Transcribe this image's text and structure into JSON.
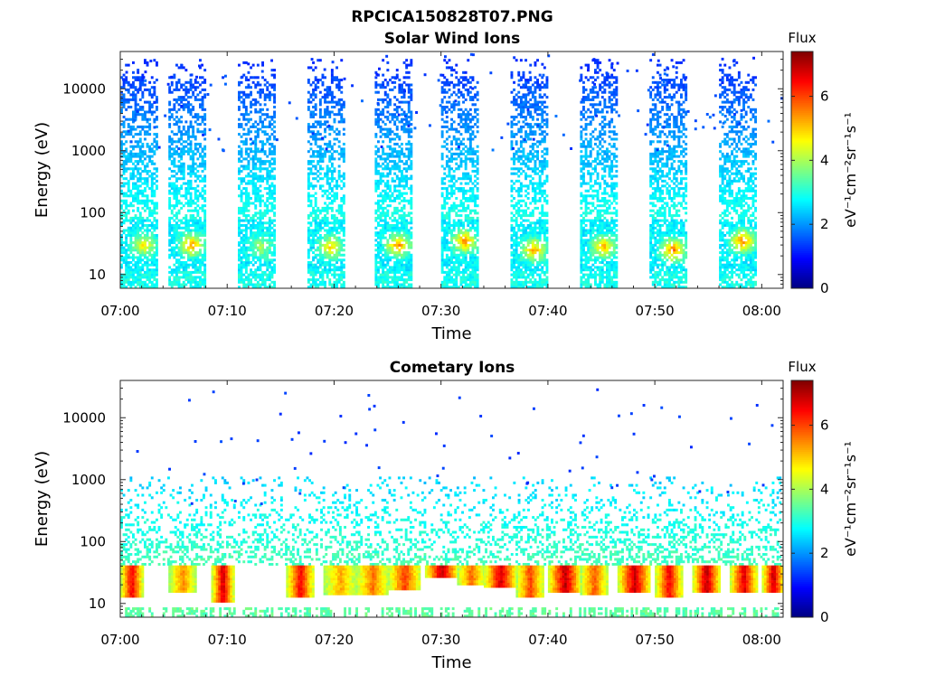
{
  "figure": {
    "title": "RPCICA150828T07.PNG"
  },
  "chart_data": [
    {
      "type": "heatmap",
      "title": "Solar Wind Ions",
      "xlabel": "Time",
      "ylabel": "Energy (eV)",
      "yscale": "log",
      "xlim": [
        "07:00",
        "08:02"
      ],
      "ylim": [
        6,
        40000
      ],
      "x_ticks": [
        "07:00",
        "07:10",
        "07:20",
        "07:30",
        "07:40",
        "07:50",
        "08:00"
      ],
      "y_ticks": [
        "10",
        "100",
        "1000",
        "10000"
      ],
      "colorbar": {
        "label": "Flux",
        "units": "eV⁻¹cm⁻²sr⁻¹s⁻¹",
        "range": [
          0,
          7.4
        ],
        "ticks": [
          "0",
          "2",
          "4",
          "6"
        ],
        "colormap": "jet"
      },
      "sweep_start_min": [
        0.0,
        4.5,
        11.0,
        17.5,
        23.8,
        30.0,
        36.5,
        43.0,
        49.5,
        56.0
      ],
      "sweep_duration_min": 3.5,
      "bursts": [
        {
          "start": 0.0,
          "peak_energy_eV": 30,
          "peak_flux": 4.6
        },
        {
          "start": 4.5,
          "peak_energy_eV": 30,
          "peak_flux": 5.3
        },
        {
          "start": 11.0,
          "peak_energy_eV": 28,
          "peak_flux": 3.8
        },
        {
          "start": 17.5,
          "peak_energy_eV": 28,
          "peak_flux": 4.8
        },
        {
          "start": 23.8,
          "peak_energy_eV": 30,
          "peak_flux": 5.4
        },
        {
          "start": 30.0,
          "peak_energy_eV": 35,
          "peak_flux": 5.5
        },
        {
          "start": 36.5,
          "peak_energy_eV": 25,
          "peak_flux": 5.2
        },
        {
          "start": 43.0,
          "peak_energy_eV": 28,
          "peak_flux": 5.1
        },
        {
          "start": 49.5,
          "peak_energy_eV": 25,
          "peak_flux": 5.6
        },
        {
          "start": 56.0,
          "peak_energy_eV": 35,
          "peak_flux": 5.6
        }
      ],
      "background_flux": [
        1.2,
        2.8
      ],
      "grid": false
    },
    {
      "type": "heatmap",
      "title": "Cometary Ions",
      "xlabel": "Time",
      "ylabel": "Energy (eV)",
      "yscale": "log",
      "xlim": [
        "07:00",
        "08:02"
      ],
      "ylim": [
        6,
        40000
      ],
      "x_ticks": [
        "07:00",
        "07:10",
        "07:20",
        "07:30",
        "07:40",
        "07:50",
        "08:00"
      ],
      "y_ticks": [
        "10",
        "100",
        "1000",
        "10000"
      ],
      "colorbar": {
        "label": "Flux",
        "units": "eV⁻¹cm⁻²sr⁻¹s⁻¹",
        "range": [
          0,
          7.4
        ],
        "ticks": [
          "0",
          "2",
          "4",
          "6"
        ],
        "colormap": "jet"
      },
      "bursts": [
        {
          "start": 0.0,
          "end": 2.0,
          "energy_eV": [
            12,
            40
          ],
          "peak_flux": 6.4
        },
        {
          "start": 4.5,
          "end": 7.0,
          "energy_eV": [
            15,
            40
          ],
          "peak_flux": 5.2
        },
        {
          "start": 8.5,
          "end": 10.5,
          "energy_eV": [
            10,
            40
          ],
          "peak_flux": 6.6
        },
        {
          "start": 15.5,
          "end": 18.0,
          "energy_eV": [
            12,
            40
          ],
          "peak_flux": 6.3
        },
        {
          "start": 19.0,
          "end": 22.0,
          "energy_eV": [
            14,
            40
          ],
          "peak_flux": 5.0
        },
        {
          "start": 22.0,
          "end": 25.0,
          "energy_eV": [
            14,
            40
          ],
          "peak_flux": 5.4
        },
        {
          "start": 25.0,
          "end": 28.0,
          "energy_eV": [
            16,
            40
          ],
          "peak_flux": 5.8
        },
        {
          "start": 28.5,
          "end": 31.5,
          "energy_eV": [
            25,
            40
          ],
          "peak_flux": 6.8
        },
        {
          "start": 31.5,
          "end": 34.0,
          "energy_eV": [
            20,
            40
          ],
          "peak_flux": 5.5
        },
        {
          "start": 34.0,
          "end": 37.0,
          "energy_eV": [
            18,
            40
          ],
          "peak_flux": 6.6
        },
        {
          "start": 37.0,
          "end": 39.5,
          "energy_eV": [
            12,
            40
          ],
          "peak_flux": 5.8
        },
        {
          "start": 40.0,
          "end": 43.0,
          "energy_eV": [
            15,
            40
          ],
          "peak_flux": 6.8
        },
        {
          "start": 43.0,
          "end": 45.5,
          "energy_eV": [
            14,
            40
          ],
          "peak_flux": 5.6
        },
        {
          "start": 46.5,
          "end": 49.5,
          "energy_eV": [
            15,
            40
          ],
          "peak_flux": 6.7
        },
        {
          "start": 50.0,
          "end": 52.5,
          "energy_eV": [
            12,
            40
          ],
          "peak_flux": 6.3
        },
        {
          "start": 53.5,
          "end": 56.0,
          "energy_eV": [
            15,
            40
          ],
          "peak_flux": 6.8
        },
        {
          "start": 57.0,
          "end": 59.5,
          "energy_eV": [
            15,
            40
          ],
          "peak_flux": 6.5
        },
        {
          "start": 60.0,
          "end": 62.0,
          "energy_eV": [
            15,
            40
          ],
          "peak_flux": 6.7
        }
      ],
      "sparse_high_energy_flux": 1.2,
      "grid": false
    }
  ]
}
